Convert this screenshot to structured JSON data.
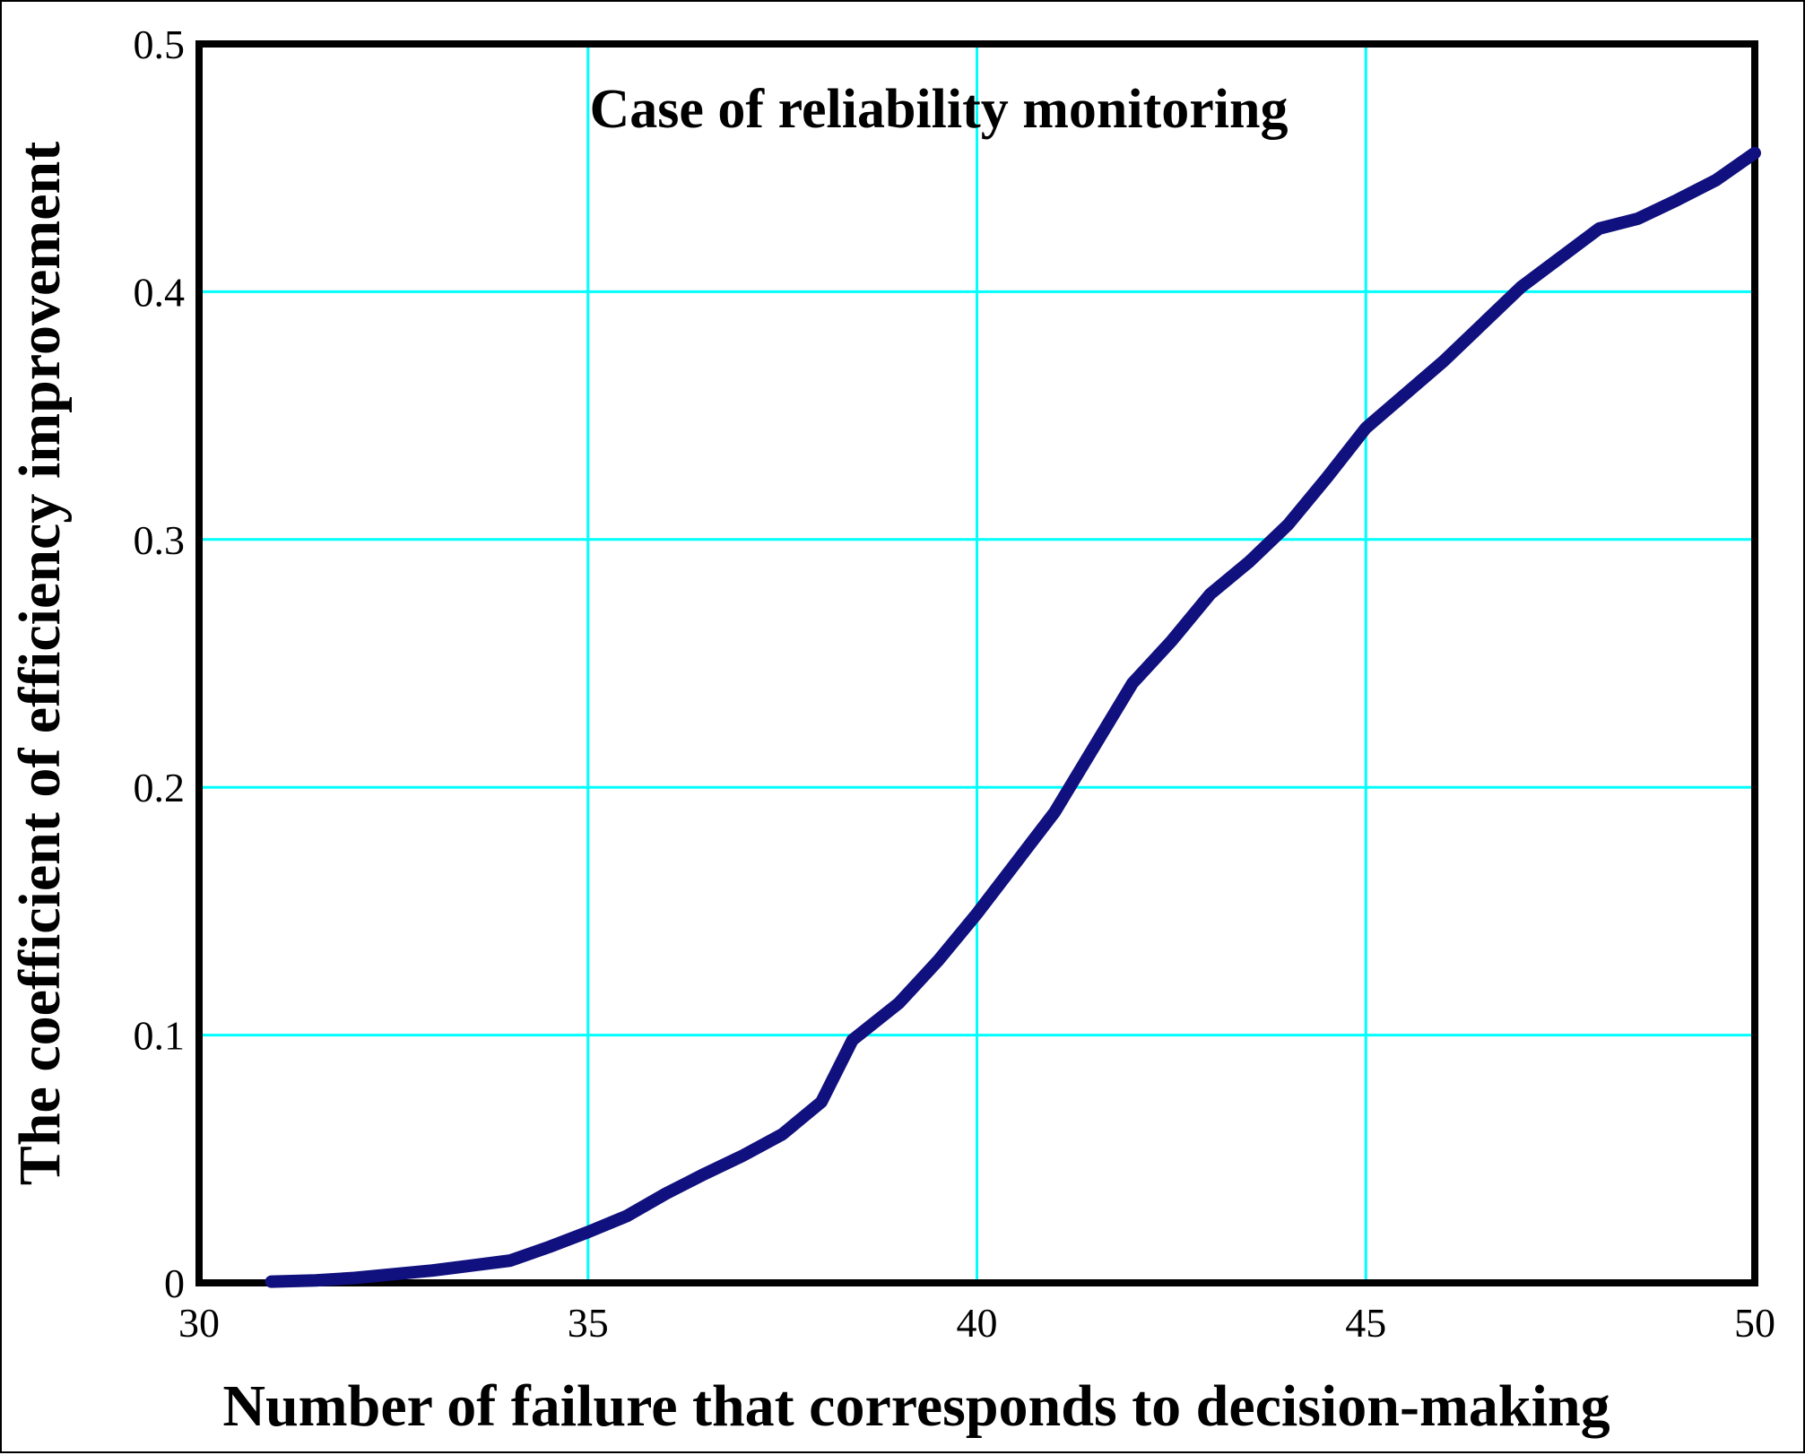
{
  "chart_data": {
    "type": "line",
    "title": "Case of reliability monitoring",
    "xlabel": "Number of failure that corresponds to decision-making",
    "ylabel": "The coefficient of efficiency improvement",
    "xlim": [
      30,
      50
    ],
    "ylim": [
      0,
      0.5
    ],
    "grid": true,
    "legend_position": "none",
    "xticks": [
      {
        "label": "30",
        "value": 30
      },
      {
        "label": "35",
        "value": 35
      },
      {
        "label": "40",
        "value": 40
      },
      {
        "label": "45",
        "value": 45
      },
      {
        "label": "50",
        "value": 50
      }
    ],
    "yticks": [
      {
        "label": "0",
        "value": 0
      },
      {
        "label": "0.1",
        "value": 0.1
      },
      {
        "label": "0.2",
        "value": 0.2
      },
      {
        "label": "0.3",
        "value": 0.3
      },
      {
        "label": "0.4",
        "value": 0.4
      },
      {
        "label": "0.5",
        "value": 0.5
      }
    ],
    "colors": {
      "line": "#10107E",
      "grid": "#00FFFF",
      "axis": "#000000",
      "background": "#FFFFFF",
      "text": "#000000"
    },
    "series": [
      {
        "points": [
          [
            30.93,
            0.0005
          ],
          [
            31.5,
            0.001
          ],
          [
            32,
            0.002
          ],
          [
            32.5,
            0.0035
          ],
          [
            33,
            0.005
          ],
          [
            33.5,
            0.007
          ],
          [
            34,
            0.009
          ],
          [
            34.5,
            0.0145
          ],
          [
            35,
            0.0205
          ],
          [
            35.5,
            0.027
          ],
          [
            36,
            0.036
          ],
          [
            36.5,
            0.044
          ],
          [
            37,
            0.0515
          ],
          [
            37.5,
            0.06
          ],
          [
            38,
            0.073
          ],
          [
            38.4,
            0.098
          ],
          [
            39,
            0.113
          ],
          [
            39.5,
            0.13
          ],
          [
            40,
            0.149
          ],
          [
            41,
            0.19
          ],
          [
            42,
            0.242
          ],
          [
            42.5,
            0.259
          ],
          [
            43,
            0.278
          ],
          [
            43.5,
            0.291
          ],
          [
            44,
            0.306
          ],
          [
            44.5,
            0.325
          ],
          [
            45,
            0.345
          ],
          [
            46,
            0.372
          ],
          [
            47,
            0.402
          ],
          [
            48,
            0.4255
          ],
          [
            48.5,
            0.4295
          ],
          [
            49,
            0.437
          ],
          [
            49.5,
            0.445
          ],
          [
            50,
            0.456
          ]
        ]
      }
    ]
  }
}
